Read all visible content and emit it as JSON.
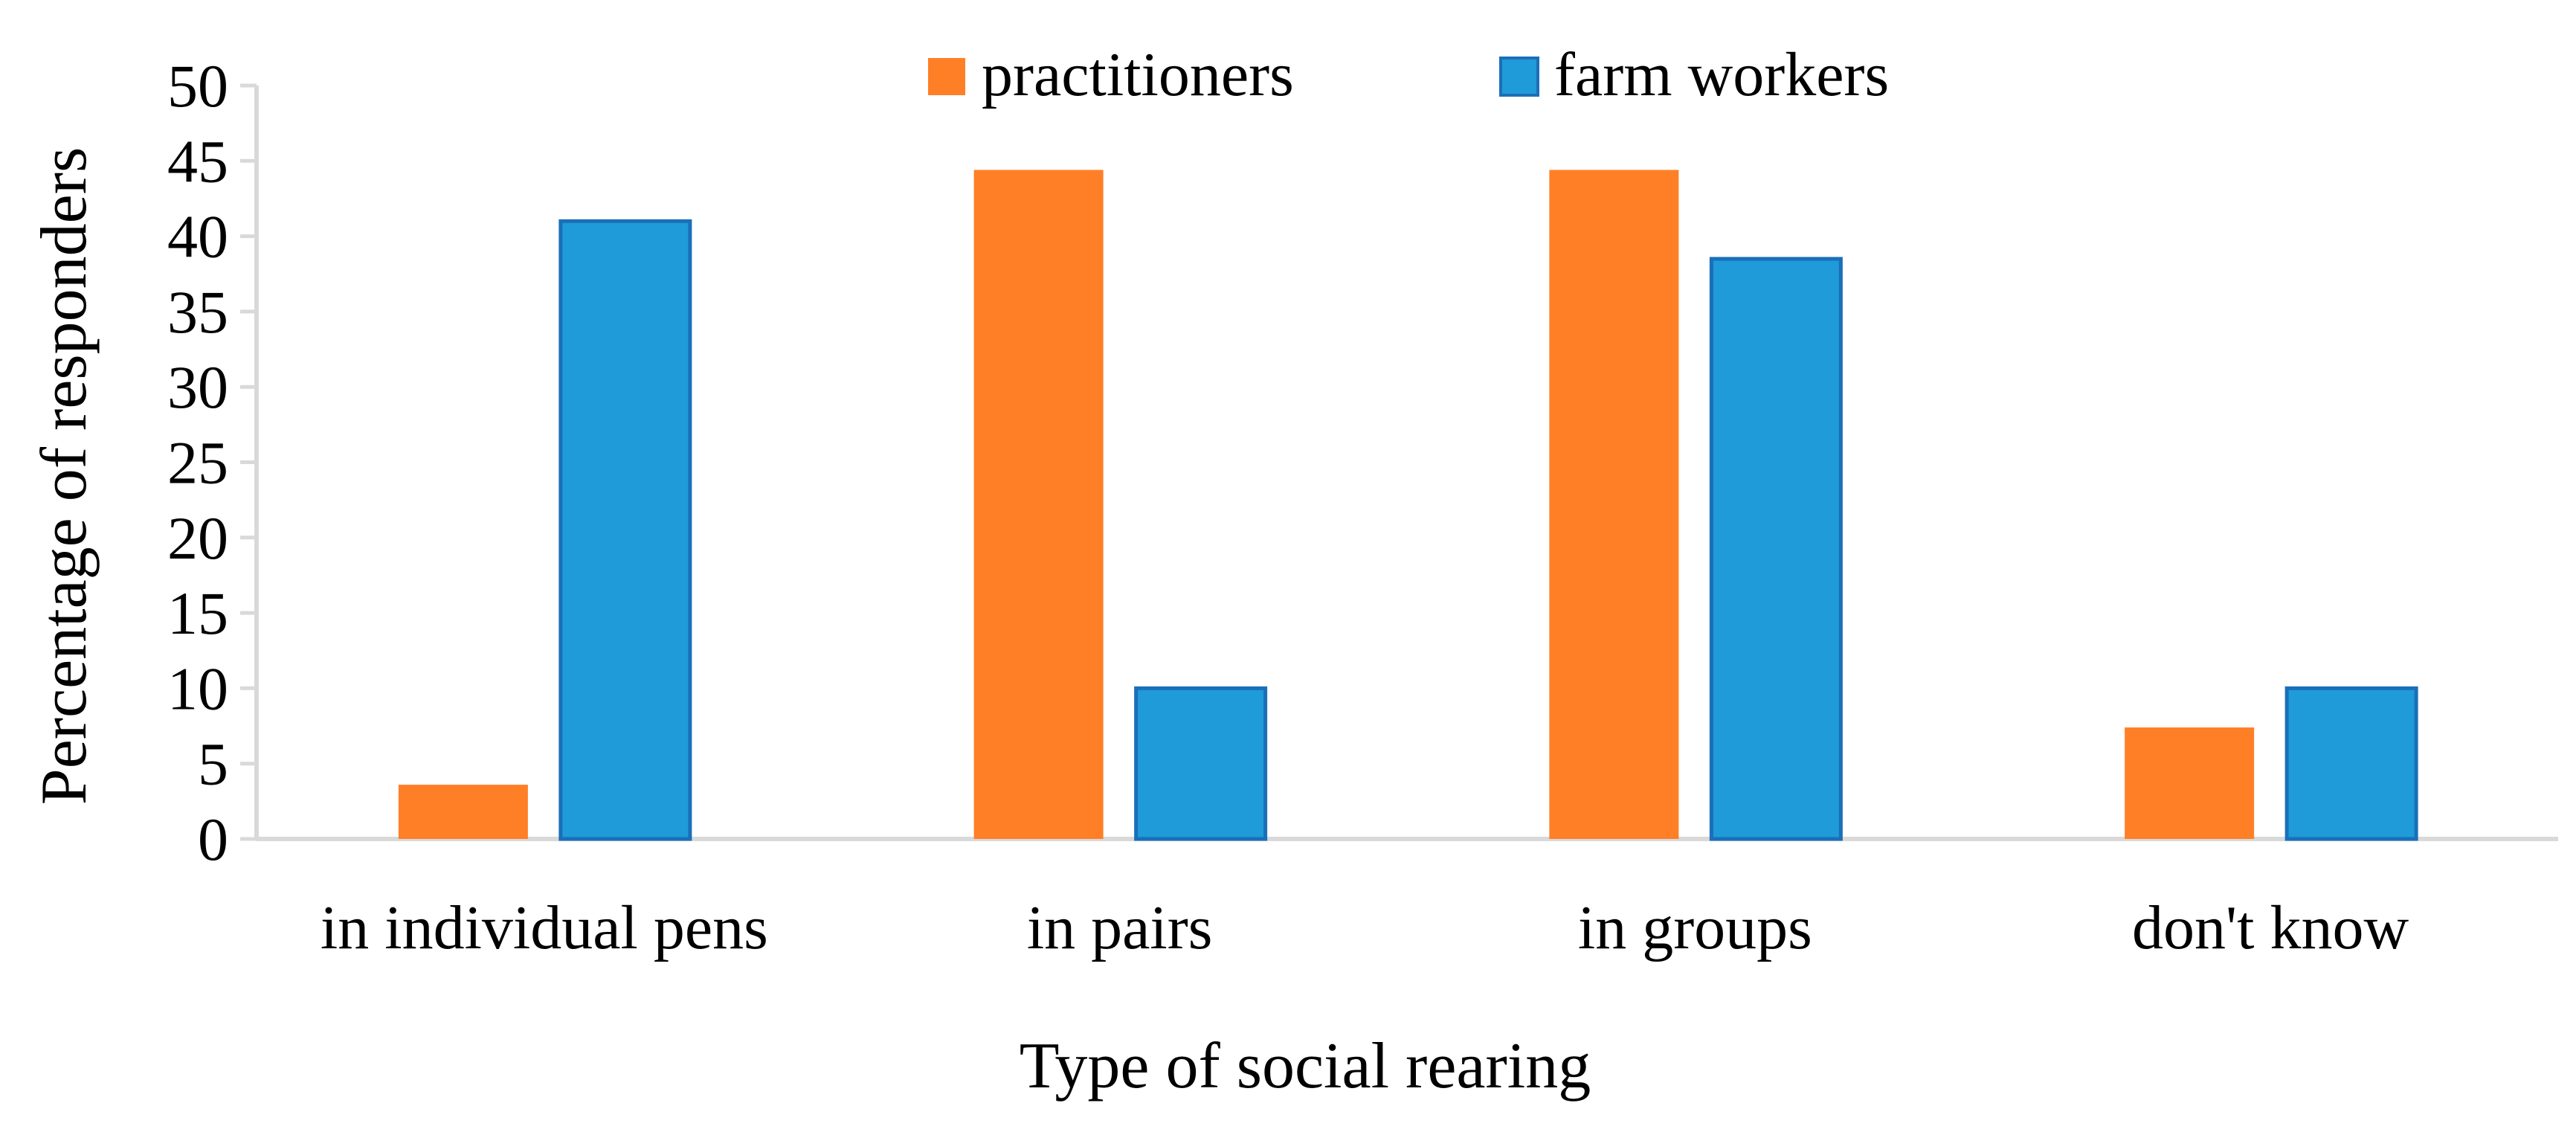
{
  "chart_data": {
    "type": "bar",
    "title": "",
    "xlabel": "Type of social rearing",
    "ylabel": "Percentage of responders",
    "categories": [
      "in individual pens",
      "in pairs",
      "in groups",
      "don't know"
    ],
    "series": [
      {
        "name": "practitioners",
        "values": [
          3.6,
          44.4,
          44.4,
          7.4
        ],
        "color": "#FF7F27"
      },
      {
        "name": "farm workers",
        "values": [
          41.0,
          10.0,
          38.5,
          10.0
        ],
        "color": "#1F9BD9"
      }
    ],
    "ylim": [
      0,
      50
    ],
    "yticks": [
      "0",
      "5",
      "10",
      "15",
      "20",
      "25",
      "30",
      "35",
      "40",
      "45",
      "50"
    ],
    "grid": false,
    "legend_position": "top-center"
  }
}
